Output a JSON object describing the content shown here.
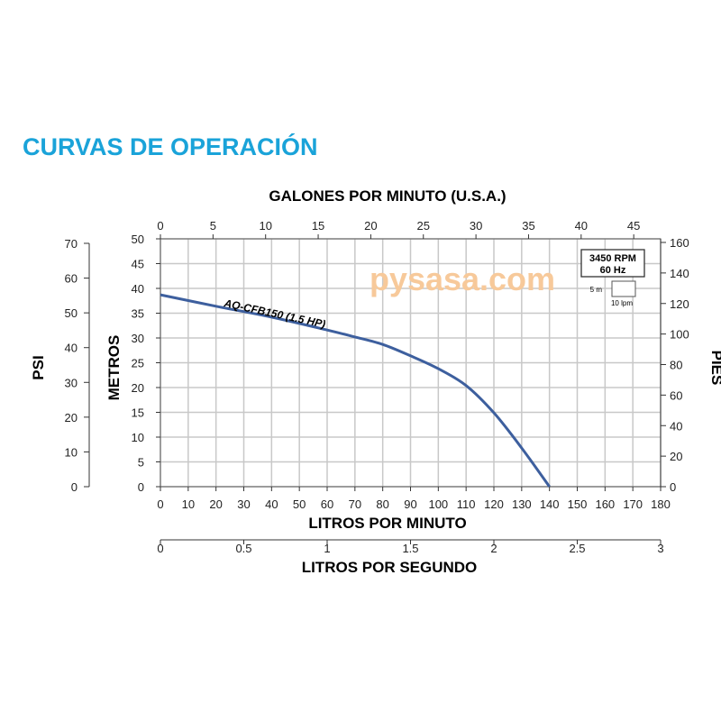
{
  "page_title": "CURVAS DE OPERACIÓN",
  "watermark": "pysasa.com",
  "chart_data": {
    "type": "line",
    "title": "CURVAS DE OPERACIÓN",
    "xlabel": "LITROS POR MINUTO",
    "x_top_label": "GALONES POR MINUTO (U.S.A.)",
    "x_bottom2_label": "LITROS POR SEGUNDO",
    "ylabel": "METROS",
    "y_left2_label": "PSI",
    "y_right_label": "PIES",
    "xlim": [
      0,
      180
    ],
    "ylim": [
      0,
      50
    ],
    "grid": true,
    "x_ticks": [
      0,
      10,
      20,
      30,
      40,
      50,
      60,
      70,
      80,
      90,
      100,
      110,
      120,
      130,
      140,
      150,
      160,
      170,
      180
    ],
    "y_ticks": [
      0,
      5,
      10,
      15,
      20,
      25,
      30,
      35,
      40,
      45,
      50
    ],
    "gpm_ticks": [
      0,
      5,
      10,
      15,
      20,
      25,
      30,
      35,
      40,
      45
    ],
    "lps_ticks": [
      "0",
      "0.5",
      "1",
      "1.5",
      "2",
      "2.5",
      "3"
    ],
    "psi_ticks": [
      0,
      10,
      20,
      30,
      40,
      50,
      60,
      70
    ],
    "pies_ticks": [
      0,
      20,
      40,
      60,
      80,
      100,
      120,
      140,
      160
    ],
    "series": [
      {
        "name": "AQ-CFB150 (1.5 HP)",
        "color": "#3d5f9e",
        "x": [
          0,
          20,
          40,
          60,
          70,
          80,
          90,
          100,
          110,
          120,
          130,
          140
        ],
        "y": [
          38.7,
          36.4,
          34.2,
          31.6,
          30.2,
          28.7,
          26.4,
          23.8,
          20.4,
          14.9,
          7.8,
          0
        ]
      }
    ],
    "legend_box": {
      "line1": "3450 RPM",
      "line2": "60 Hz",
      "scale_y": "5 m",
      "scale_x": "10 lpm"
    }
  }
}
